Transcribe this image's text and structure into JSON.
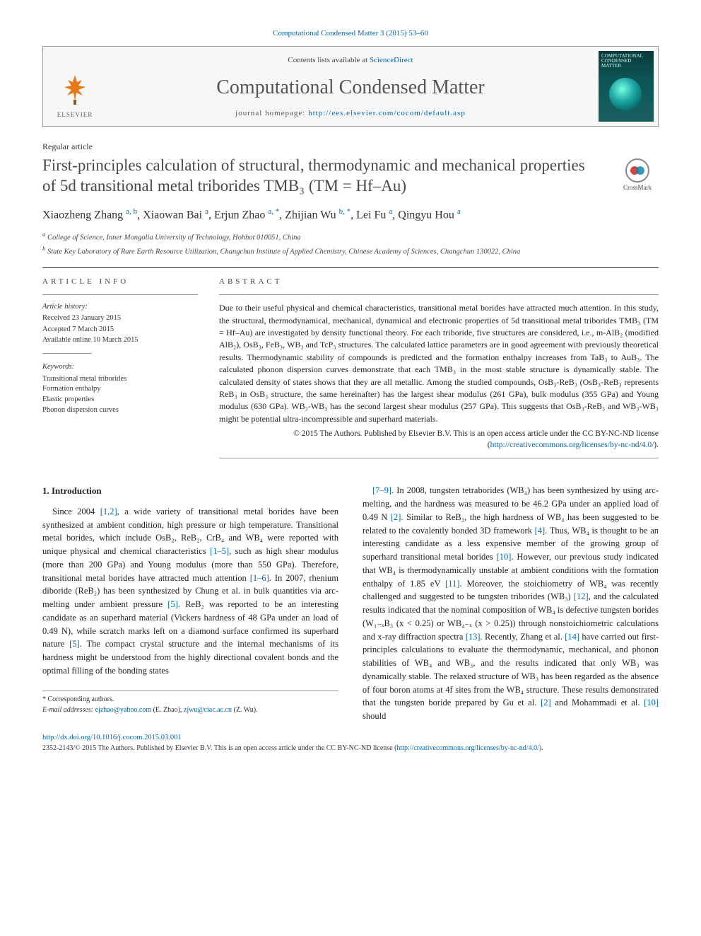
{
  "citation": {
    "prefix": "Computational Condensed Matter 3 (2015) 53–60",
    "link_text": "Computational Condensed Matter 3 (2015) 53–60"
  },
  "masthead": {
    "contents_prefix": "Contents lists available at ",
    "contents_link": "ScienceDirect",
    "journal": "Computational Condensed Matter",
    "homepage_prefix": "journal homepage: ",
    "homepage_link": "http://ees.elsevier.com/cocom/default.asp",
    "elsevier": "ELSEVIER",
    "cover_label": "COMPUTATIONAL CONDENSED MATTER"
  },
  "crossmark": "CrossMark",
  "article_type": "Regular article",
  "title": "First-principles calculation of structural, thermodynamic and mechanical properties of 5d transitional metal triborides TMB₃ (TM = Hf–Au)",
  "authors_html": "Xiaozheng Zhang <sup class='sup'>a, b</sup>, Xiaowan Bai <sup class='sup'>a</sup>, Erjun Zhao <sup class='sup'>a, *</sup>, Zhijian Wu <sup class='sup'>b, *</sup>, Lei Fu <sup class='sup'>a</sup>, Qingyu Hou <sup class='sup'>a</sup>",
  "affiliations": {
    "a": "College of Science, Inner Mongolia University of Technology, Hohhot 010051, China",
    "b": "State Key Laboratory of Rare Earth Resource Utilization, Changchun Institute of Applied Chemistry, Chinese Academy of Sciences, Changchun 130022, China"
  },
  "info": {
    "head": "ARTICLE INFO",
    "history_head": "Article history:",
    "received": "Received 23 January 2015",
    "accepted": "Accepted 7 March 2015",
    "online": "Available online 10 March 2015",
    "keywords_head": "Keywords:",
    "kw": [
      "Transitional metal triborides",
      "Formation enthalpy",
      "Elastic properties",
      "Phonon dispersion curves"
    ]
  },
  "abstract": {
    "head": "ABSTRACT",
    "text": "Due to their useful physical and chemical characteristics, transitional metal borides have attracted much attention. In this study, the structural, thermodynamical, mechanical, dynamical and electronic properties of 5d transitional metal triborides TMB₃ (TM = Hf–Au) are investigated by density functional theory. For each triboride, five structures are considered, i.e., m-AlB₂ (modified AlB₂), OsB₃, FeB₃, WB₃ and TcP₃ structures. The calculated lattice parameters are in good agreement with previously theoretical results. Thermodynamic stability of compounds is predicted and the formation enthalpy increases from TaB₃ to AuB₃. The calculated phonon dispersion curves demonstrate that each TMB₃ in the most stable structure is dynamically stable. The calculated density of states shows that they are all metallic. Among the studied compounds, OsB₃-ReB₃ (OsB₃-ReB₃ represents ReB₃ in OsB₃ structure, the same hereinafter) has the largest shear modulus (261 GPa), bulk modulus (355 GPa) and Young modulus (630 GPa). WB₃-WB₃ has the second largest shear modulus (257 GPa). This suggests that OsB₃-ReB₃ and WB₃-WB₃ might be potential ultra-incompressible and superhard materials.",
    "copyright": "© 2015 The Authors. Published by Elsevier B.V. This is an open access article under the CC BY-NC-ND license (",
    "license_link": "http://creativecommons.org/licenses/by-nc-nd/4.0/",
    "copyright_end": ")."
  },
  "body": {
    "sec_head": "1. Introduction",
    "leftcol": "Since 2004 [1,2], a wide variety of transitional metal borides have been synthesized at ambient condition, high pressure or high temperature. Transitional metal borides, which include OsB₂, ReB₂, CrB₄ and WB₄ were reported with unique physical and chemical characteristics [1–5], such as high shear modulus (more than 200 GPa) and Young modulus (more than 550 GPa). Therefore, transitional metal borides have attracted much attention [1–6]. In 2007, rhenium diboride (ReB₂) has been synthesized by Chung et al. in bulk quantities via arc-melting under ambient pressure [5]. ReB₂ was reported to be an interesting candidate as an superhard material (Vickers hardness of 48 GPa under an load of 0.49 N), while scratch marks left on a diamond surface confirmed its superhard nature [5]. The compact crystal structure and the internal mechanisms of its hardness might be understood from the highly directional covalent bonds and the optimal filling of the bonding states",
    "rightcol": "[7–9]. In 2008, tungsten tetraborides (WB₄) has been synthesized by using arc-melting, and the hardness was measured to be 46.2 GPa under an applied load of 0.49 N [2]. Similar to ReB₂, the high hardness of WB₄ has been suggested to be related to the covalently bonded 3D framework [4]. Thus, WB₄ is thought to be an interesting candidate as a less expensive member of the growing group of superhard transitional metal borides [10]. However, our previous study indicated that WB₄ is thermodynamically unstable at ambient conditions with the formation enthalpy of 1.85 eV [11]. Moreover, the stoichiometry of WB₄ was recently challenged and suggested to be tungsten triborides (WB₃) [12], and the calculated results indicated that the nominal composition of WB₄ is defective tungsten borides (W₁₋ₓB₃ (x < 0.25) or WB₄₋ₓ (x > 0.25)) through nonstoichiometric calculations and x-ray diffraction spectra [13]. Recently, Zhang et al. [14] have carried out first-principles calculations to evaluate the thermodynamic, mechanical, and phonon stabilities of WB₄ and WB₃, and the results indicated that only WB₃ was dynamically stable. The relaxed structure of WB₃ has been regarded as the absence of four boron atoms at 4f sites from the WB₄ structure. These results demonstrated that the tungsten boride prepared by Gu et al. [2] and Mohammadi et al. [10] should"
  },
  "footnotes": {
    "corr": "* Corresponding authors.",
    "email_prefix": "E-mail addresses: ",
    "email1": "ejzhao@yahoo.com",
    "email1_name": " (E. Zhao), ",
    "email2": "zjwu@ciac.ac.cn",
    "email2_name": " (Z. Wu)."
  },
  "doi": {
    "link": "http://dx.doi.org/10.1016/j.cocom.2015.03.001",
    "issn_line": "2352-2143/© 2015 The Authors. Published by Elsevier B.V. This is an open access article under the CC BY-NC-ND license (",
    "license_link": "http://creativecommons.org/licenses/by-nc-nd/4.0/",
    "end": ")."
  },
  "refs": {
    "r12": "[1,2]",
    "r1_5": "[1–5]",
    "r1_6": "[1–6]",
    "r5a": "[5]",
    "r5b": "[5]",
    "r7_9": "[7–9]",
    "r2a": "[2]",
    "r4": "[4]",
    "r10a": "[10]",
    "r11": "[11]",
    "r12b": "[12]",
    "r13": "[13]",
    "r14": "[14]",
    "r2b": "[2]",
    "r10b": "[10]"
  },
  "colors": {
    "link": "#0066b3",
    "heading": "#484848"
  }
}
